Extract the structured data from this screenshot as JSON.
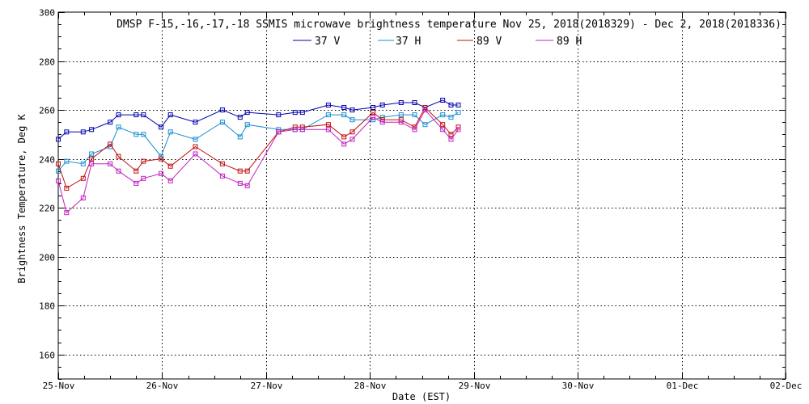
{
  "chart_data": {
    "type": "line",
    "title": "DMSP F-15,-16,-17,-18 SSMIS microwave brightness temperature Nov 25, 2018(2018329) - Dec  2, 2018(2018336)",
    "xlabel": "Date (EST)",
    "ylabel": "Brightness Temperature, Deg K",
    "xlim": [
      0,
      7
    ],
    "ylim": [
      150,
      300
    ],
    "xticks": [
      0,
      1,
      2,
      3,
      4,
      5,
      6,
      7
    ],
    "xtick_labels": [
      "25-Nov",
      "26-Nov",
      "27-Nov",
      "28-Nov",
      "29-Nov",
      "30-Nov",
      "01-Dec",
      "02-Dec"
    ],
    "yticks": [
      160,
      180,
      200,
      220,
      240,
      260,
      280,
      300
    ],
    "ytick_labels": [
      "160",
      "180",
      "200",
      "220",
      "240",
      "260",
      "280",
      "300"
    ],
    "grid": true,
    "legend_position": "top-center",
    "series": [
      {
        "name": "37 V",
        "color": "#0000b0",
        "x": [
          0.0,
          0.08,
          0.24,
          0.32,
          0.5,
          0.58,
          0.75,
          0.82,
          0.99,
          1.08,
          1.32,
          1.58,
          1.75,
          1.82,
          2.12,
          2.28,
          2.35,
          2.6,
          2.75,
          2.83,
          3.03,
          3.12,
          3.3,
          3.43,
          3.53,
          3.7,
          3.78,
          3.85
        ],
        "y": [
          248,
          251,
          251,
          252,
          255,
          258,
          258,
          258,
          253,
          258,
          255,
          260,
          257,
          259,
          258,
          259,
          259,
          262,
          261,
          260,
          261,
          262,
          263,
          263,
          261,
          264,
          262,
          262
        ]
      },
      {
        "name": "37 H",
        "color": "#1a8fd0",
        "x": [
          0.0,
          0.08,
          0.24,
          0.32,
          0.5,
          0.58,
          0.75,
          0.82,
          0.99,
          1.08,
          1.32,
          1.58,
          1.75,
          1.82,
          2.12,
          2.28,
          2.35,
          2.6,
          2.75,
          2.83,
          3.03,
          3.12,
          3.3,
          3.43,
          3.53,
          3.7,
          3.78,
          3.85
        ],
        "y": [
          235,
          239,
          238,
          242,
          245,
          253,
          250,
          250,
          241,
          251,
          248,
          255,
          249,
          254,
          252,
          252,
          252,
          258,
          258,
          256,
          256,
          257,
          258,
          258,
          254,
          258,
          257,
          259
        ]
      },
      {
        "name": "89 V",
        "color": "#c01010",
        "x": [
          0.0,
          0.08,
          0.24,
          0.32,
          0.5,
          0.58,
          0.75,
          0.82,
          0.99,
          1.08,
          1.32,
          1.58,
          1.75,
          1.82,
          2.12,
          2.28,
          2.35,
          2.6,
          2.75,
          2.83,
          3.03,
          3.12,
          3.3,
          3.43,
          3.53,
          3.7,
          3.78,
          3.85
        ],
        "y": [
          238,
          228,
          232,
          240,
          246,
          241,
          235,
          239,
          240,
          237,
          245,
          238,
          235,
          235,
          251,
          253,
          253,
          254,
          249,
          251,
          259,
          256,
          256,
          253,
          261,
          254,
          250,
          253
        ]
      },
      {
        "name": "89 H",
        "color": "#c020c0",
        "x": [
          0.0,
          0.08,
          0.24,
          0.32,
          0.5,
          0.58,
          0.75,
          0.82,
          0.99,
          1.08,
          1.32,
          1.58,
          1.75,
          1.82,
          2.12,
          2.28,
          2.35,
          2.6,
          2.75,
          2.83,
          3.03,
          3.12,
          3.3,
          3.43,
          3.53,
          3.7,
          3.78,
          3.85
        ],
        "y": [
          231,
          218,
          224,
          238,
          238,
          235,
          230,
          232,
          234,
          231,
          242,
          233,
          230,
          229,
          251,
          252,
          252,
          252,
          246,
          248,
          257,
          255,
          255,
          252,
          260,
          252,
          248,
          252
        ]
      }
    ]
  }
}
